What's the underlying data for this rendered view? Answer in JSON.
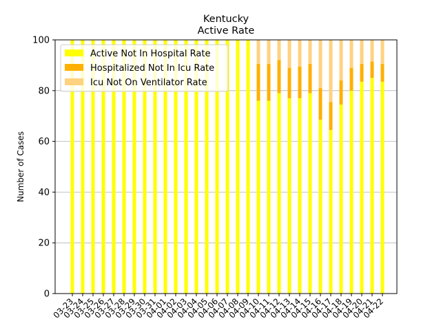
{
  "chart_data": {
    "type": "bar",
    "stacked": true,
    "title": "Kentucky",
    "subtitle": "Active Rate",
    "xlabel": "",
    "ylabel": "Number of Cases",
    "ylim": [
      0,
      100
    ],
    "yticks": [
      0,
      20,
      40,
      60,
      80,
      100
    ],
    "grid": "y",
    "legend_position": "top-left",
    "categories": [
      "03-23",
      "03-24",
      "03-25",
      "03-26",
      "03-27",
      "03-28",
      "03-29",
      "03-30",
      "03-31",
      "04-01",
      "04-02",
      "04-03",
      "04-04",
      "04-05",
      "04-06",
      "04-07",
      "04-08",
      "04-09",
      "04-10",
      "04-11",
      "04-12",
      "04-13",
      "04-14",
      "04-15",
      "04-16",
      "04-17",
      "04-18",
      "04-19",
      "04-20",
      "04-21",
      "04-22"
    ],
    "series": [
      {
        "name": "Active Not In Hospital Rate",
        "color": "#ffff00",
        "values": [
          100,
          100,
          100,
          100,
          100,
          100,
          100,
          100,
          100,
          100,
          100,
          100,
          100,
          100,
          100,
          100,
          100,
          100,
          76,
          76,
          79,
          77,
          77,
          79,
          68.5,
          64.5,
          74.5,
          80,
          83.5,
          85,
          83.5
        ]
      },
      {
        "name": "Hospitalized Not In Icu Rate",
        "color": "#ffb000",
        "values": [
          0,
          0,
          0,
          0,
          0,
          0,
          0,
          0,
          0,
          0,
          0,
          0,
          0,
          0,
          0,
          0,
          0,
          0,
          14.5,
          14.5,
          13,
          12,
          12.5,
          11.5,
          12.5,
          11,
          9.5,
          9,
          7,
          6.5,
          7
        ]
      },
      {
        "name": "Icu Not On Ventilator Rate",
        "color": "#ffd27f",
        "values": [
          0,
          0,
          0,
          0,
          0,
          0,
          0,
          0,
          0,
          0,
          0,
          0,
          0,
          0,
          0,
          0,
          0,
          0,
          9.5,
          9.5,
          8,
          11,
          10.5,
          9.5,
          19,
          24.5,
          16,
          11,
          9.5,
          8.5,
          9.5
        ]
      }
    ]
  }
}
